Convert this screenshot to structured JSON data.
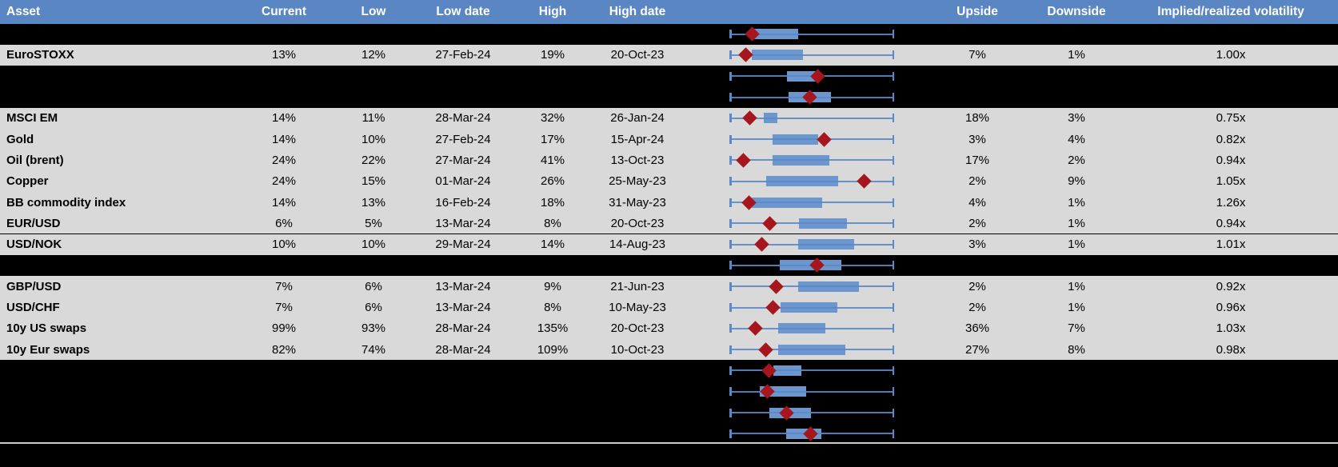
{
  "colors": {
    "header_bg": "#5B86C4",
    "header_text": "#FFFFFF",
    "visible_row_bg": "#D9D9D9",
    "hidden_row_bg": "#000000",
    "box_fill": "#6C97CE",
    "whisker": "#5C88C6",
    "marker_diamond": "#A5161D",
    "separator_line": "#CBCBCB",
    "cell_text": "#000000"
  },
  "header": {
    "asset": "Asset",
    "current": "Current",
    "low": "Low",
    "low_date": "Low date",
    "high": "High",
    "high_date": "High date",
    "upside": "Upside",
    "downside": "Downside",
    "impl_vol": "Implied/realized volatility"
  },
  "chart_data": {
    "type": "table",
    "embedded_chart_type": "box-whisker",
    "embedded_chart_note": "Each row has a horizontal box plot: whiskers span the full normalized min-max range [0,1]; blue box = inner range; red diamond = current level marker",
    "whisker_range": [
      0,
      1
    ],
    "columns": [
      "Asset",
      "Current",
      "Low",
      "Low date",
      "High",
      "High date",
      "Upside",
      "Downside",
      "Implied/realized volatility"
    ],
    "rows": [
      {
        "hidden": true,
        "asset": "",
        "current": "",
        "low": "",
        "low_date": "",
        "high": "",
        "high_date": "",
        "upside": "",
        "downside": "",
        "impl_vol": "",
        "box_lo": 0.15,
        "box_hi": 0.417,
        "marker": 0.136
      },
      {
        "hidden": false,
        "asset": "EuroSTOXX",
        "current": "13%",
        "low": "12%",
        "low_date": "27-Feb-24",
        "high": "19%",
        "high_date": "20-Oct-23",
        "upside": "7%",
        "downside": "1%",
        "impl_vol": "1.00x",
        "box_lo": 0.136,
        "box_hi": 0.448,
        "marker": 0.099
      },
      {
        "hidden": true,
        "asset": "",
        "current": "",
        "low": "",
        "low_date": "",
        "high": "",
        "high_date": "",
        "upside": "",
        "downside": "",
        "impl_vol": "",
        "box_lo": 0.348,
        "box_hi": 0.54,
        "marker": 0.535
      },
      {
        "hidden": true,
        "asset": "",
        "current": "",
        "low": "",
        "low_date": "",
        "high": "",
        "high_date": "",
        "upside": "",
        "downside": "",
        "impl_vol": "",
        "box_lo": 0.359,
        "box_hi": 0.618,
        "marker": 0.487
      },
      {
        "hidden": false,
        "asset": "MSCI EM",
        "current": "14%",
        "low": "11%",
        "low_date": "28-Mar-24",
        "high": "32%",
        "high_date": "26-Jan-24",
        "upside": "18%",
        "downside": "3%",
        "impl_vol": "0.75x",
        "box_lo": 0.209,
        "box_hi": 0.293,
        "marker": 0.123
      },
      {
        "hidden": false,
        "asset": "Gold",
        "current": "14%",
        "low": "10%",
        "low_date": "27-Feb-24",
        "high": "17%",
        "high_date": "15-Apr-24",
        "upside": "3%",
        "downside": "4%",
        "impl_vol": "0.82x",
        "box_lo": 0.262,
        "box_hi": 0.54,
        "marker": 0.576
      },
      {
        "hidden": false,
        "asset": "Oil (brent)",
        "current": "24%",
        "low": "22%",
        "low_date": "27-Mar-24",
        "high": "41%",
        "high_date": "13-Oct-23",
        "upside": "17%",
        "downside": "2%",
        "impl_vol": "0.94x",
        "box_lo": 0.262,
        "box_hi": 0.605,
        "marker": 0.083
      },
      {
        "hidden": false,
        "asset": "Copper",
        "current": "24%",
        "low": "15%",
        "low_date": "01-Mar-24",
        "high": "26%",
        "high_date": "25-May-23",
        "upside": "2%",
        "downside": "9%",
        "impl_vol": "1.05x",
        "box_lo": 0.222,
        "box_hi": 0.662,
        "marker": 0.82
      },
      {
        "hidden": false,
        "asset": "BB commodity index",
        "current": "14%",
        "low": "13%",
        "low_date": "16-Feb-24",
        "high": "18%",
        "high_date": "31-May-23",
        "upside": "4%",
        "downside": "1%",
        "impl_vol": "1.26x",
        "box_lo": 0.136,
        "box_hi": 0.562,
        "marker": 0.12
      },
      {
        "hidden": false,
        "asset": "EUR/USD",
        "current": "6%",
        "low": "5%",
        "low_date": "13-Mar-24",
        "high": "8%",
        "high_date": "20-Oct-23",
        "upside": "2%",
        "downside": "1%",
        "impl_vol": "0.94x",
        "box_lo": 0.424,
        "box_hi": 0.715,
        "marker": 0.244
      },
      {
        "hidden": false,
        "asset": "USD/NOK",
        "current": "10%",
        "low": "10%",
        "low_date": "29-Mar-24",
        "high": "14%",
        "high_date": "14-Aug-23",
        "upside": "3%",
        "downside": "1%",
        "impl_vol": "1.01x",
        "box_lo": 0.416,
        "box_hi": 0.759,
        "marker": 0.196
      },
      {
        "hidden": true,
        "asset": "",
        "current": "",
        "low": "",
        "low_date": "",
        "high": "",
        "high_date": "",
        "upside": "",
        "downside": "",
        "impl_vol": "",
        "box_lo": 0.306,
        "box_hi": 0.678,
        "marker": 0.533
      },
      {
        "hidden": false,
        "asset": "GBP/USD",
        "current": "7%",
        "low": "6%",
        "low_date": "13-Mar-24",
        "high": "9%",
        "high_date": "21-Jun-23",
        "upside": "2%",
        "downside": "1%",
        "impl_vol": "0.92x",
        "box_lo": 0.416,
        "box_hi": 0.788,
        "marker": 0.285
      },
      {
        "hidden": false,
        "asset": "USD/CHF",
        "current": "7%",
        "low": "6%",
        "low_date": "13-Mar-24",
        "high": "8%",
        "high_date": "10-May-23",
        "upside": "2%",
        "downside": "1%",
        "impl_vol": "0.96x",
        "box_lo": 0.311,
        "box_hi": 0.654,
        "marker": 0.265
      },
      {
        "hidden": false,
        "asset": "10y US swaps",
        "current": "99%",
        "low": "93%",
        "low_date": "28-Mar-24",
        "high": "135%",
        "high_date": "20-Oct-23",
        "upside": "36%",
        "downside": "7%",
        "impl_vol": "1.03x",
        "box_lo": 0.295,
        "box_hi": 0.581,
        "marker": 0.16
      },
      {
        "hidden": false,
        "asset": "10y Eur swaps",
        "current": "82%",
        "low": "74%",
        "low_date": "28-Mar-24",
        "high": "109%",
        "high_date": "10-Oct-23",
        "upside": "27%",
        "downside": "8%",
        "impl_vol": "0.98x",
        "box_lo": 0.295,
        "box_hi": 0.702,
        "marker": 0.222
      },
      {
        "hidden": true,
        "asset": "",
        "current": "",
        "low": "",
        "low_date": "",
        "high": "",
        "high_date": "",
        "upside": "",
        "downside": "",
        "impl_vol": "",
        "box_lo": 0.265,
        "box_hi": 0.435,
        "marker": 0.241
      },
      {
        "hidden": true,
        "asset": "",
        "current": "",
        "low": "",
        "low_date": "",
        "high": "",
        "high_date": "",
        "upside": "",
        "downside": "",
        "impl_vol": "",
        "box_lo": 0.184,
        "box_hi": 0.467,
        "marker": 0.23
      },
      {
        "hidden": true,
        "asset": "",
        "current": "",
        "low": "",
        "low_date": "",
        "high": "",
        "high_date": "",
        "upside": "",
        "downside": "",
        "impl_vol": "",
        "box_lo": 0.244,
        "box_hi": 0.497,
        "marker": 0.346
      },
      {
        "hidden": true,
        "asset": "",
        "current": "",
        "low": "",
        "low_date": "",
        "high": "",
        "high_date": "",
        "upside": "",
        "downside": "",
        "impl_vol": "",
        "box_lo": 0.346,
        "box_hi": 0.557,
        "marker": 0.492
      }
    ]
  }
}
